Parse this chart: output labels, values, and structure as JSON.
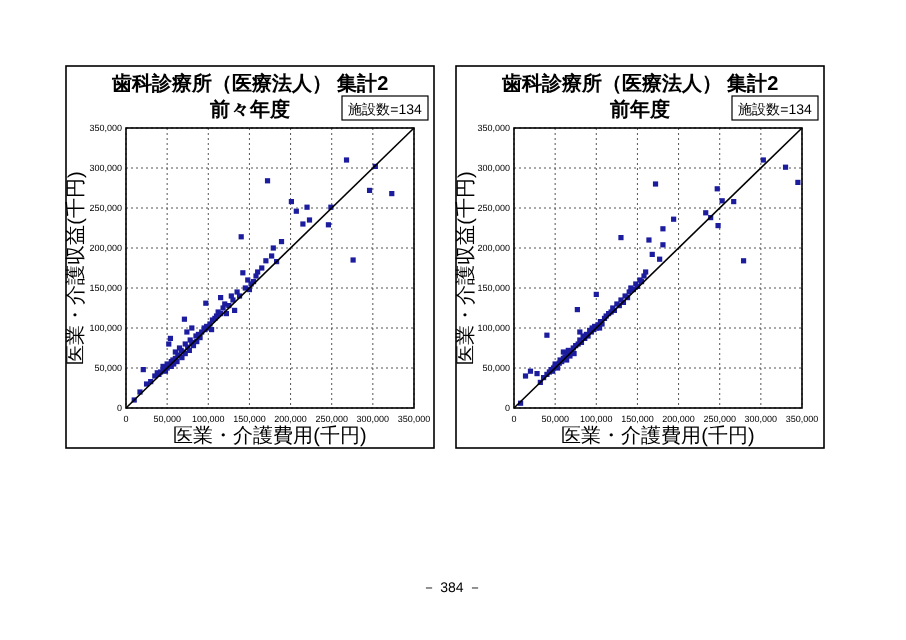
{
  "chart_data": [
    {
      "type": "scatter",
      "title": "歯科診療所（医療法人） 集計2",
      "subtitle": "前々年度",
      "xlabel": "医業・介護費用(千円)",
      "ylabel": "医業・介護収益(千円)",
      "annotations": [
        "施設数=134"
      ],
      "xlim": [
        0,
        350000
      ],
      "ylim": [
        0,
        350000
      ],
      "xticks": [
        0,
        {
          "value": 50000,
          "label": "50,000"
        },
        {
          "value": 100000,
          "label": "100,000"
        },
        {
          "value": 150000,
          "label": "150,000"
        },
        {
          "value": 200000,
          "label": "200,000"
        },
        {
          "value": 250000,
          "label": "250,000"
        },
        {
          "value": 300000,
          "label": "300,000"
        },
        {
          "value": 350000,
          "label": "350,000"
        }
      ],
      "yticks": [
        0,
        {
          "value": 50000,
          "label": "50,000"
        },
        {
          "value": 100000,
          "label": "100,000"
        },
        {
          "value": 150000,
          "label": "150,000"
        },
        {
          "value": 200000,
          "label": "200,000"
        },
        {
          "value": 250000,
          "label": "250,000"
        },
        {
          "value": 300000,
          "label": "300,000"
        },
        {
          "value": 350000,
          "label": "350,000"
        }
      ],
      "grid": true,
      "marker": "square",
      "series": [
        {
          "type": "scatter",
          "color": "#1c1c9e",
          "x": [
            10000,
            17000,
            21000,
            25000,
            30000,
            35000,
            38000,
            40000,
            42000,
            45000,
            45000,
            48000,
            50000,
            50000,
            52000,
            54000,
            55000,
            55000,
            57000,
            58000,
            60000,
            60000,
            62000,
            63000,
            65000,
            65000,
            67000,
            68000,
            70000,
            71000,
            72000,
            72000,
            74000,
            75000,
            77000,
            78000,
            80000,
            80000,
            82000,
            85000,
            86000,
            88000,
            90000,
            92000,
            95000,
            96000,
            97000,
            98000,
            100000,
            102000,
            104000,
            105000,
            108000,
            110000,
            112000,
            115000,
            115000,
            118000,
            120000,
            122000,
            125000,
            128000,
            130000,
            132000,
            135000,
            138000,
            140000,
            142000,
            145000,
            148000,
            150000,
            152000,
            155000,
            158000,
            160000,
            165000,
            170000,
            172000,
            177000,
            179000,
            183000,
            189000,
            201000,
            207000,
            215000,
            220000,
            223000,
            246000,
            249000,
            268000,
            276000,
            296000,
            303000,
            323000
          ],
          "values": [
            10000,
            20000,
            48000,
            30000,
            33000,
            40000,
            44000,
            42000,
            45000,
            48000,
            52000,
            46000,
            50000,
            55000,
            80000,
            87000,
            58000,
            52000,
            60000,
            55000,
            62000,
            70000,
            58000,
            66000,
            65000,
            75000,
            72000,
            63000,
            70000,
            111000,
            68000,
            80000,
            95000,
            76000,
            72000,
            85000,
            82000,
            100000,
            78000,
            90000,
            83000,
            92000,
            88000,
            95000,
            100000,
            98000,
            131000,
            102000,
            100000,
            105000,
            98000,
            110000,
            112000,
            115000,
            120000,
            118000,
            138000,
            125000,
            130000,
            118000,
            128000,
            140000,
            135000,
            122000,
            145000,
            140000,
            214000,
            169000,
            150000,
            160000,
            148000,
            155000,
            158000,
            165000,
            170000,
            175000,
            184000,
            284000,
            190000,
            200000,
            183000,
            208000,
            258000,
            246000,
            230000,
            251000,
            235000,
            229000,
            251000,
            310000,
            185000,
            272000,
            302000,
            268000
          ]
        },
        {
          "type": "line",
          "marker": "none",
          "color": "#000000",
          "x": [
            0,
            350000
          ],
          "values": [
            0,
            350000
          ]
        }
      ]
    },
    {
      "type": "scatter",
      "title": "歯科診療所（医療法人） 集計2",
      "subtitle": "前年度",
      "xlabel": "医業・介護費用(千円)",
      "ylabel": "医業・介護収益(千円)",
      "annotations": [
        "施設数=134",
        "－ 384 －"
      ],
      "xlim": [
        0,
        350000
      ],
      "ylim": [
        0,
        350000
      ],
      "xticks": [
        0,
        {
          "value": 50000,
          "label": "50,000"
        },
        {
          "value": 100000,
          "label": "100,000"
        },
        {
          "value": 150000,
          "label": "150,000"
        },
        {
          "value": 200000,
          "label": "200,000"
        },
        {
          "value": 250000,
          "label": "250,000"
        },
        {
          "value": 300000,
          "label": "300,000"
        },
        {
          "value": 350000,
          "label": "350,000"
        }
      ],
      "yticks": [
        0,
        {
          "value": 50000,
          "label": "50,000"
        },
        {
          "value": 100000,
          "label": "100,000"
        },
        {
          "value": 150000,
          "label": "150,000"
        },
        {
          "value": 200000,
          "label": "200,000"
        },
        {
          "value": 250000,
          "label": "250,000"
        },
        {
          "value": 300000,
          "label": "300,000"
        },
        {
          "value": 350000,
          "label": "350,000"
        }
      ],
      "grid": true,
      "marker": "square",
      "series": [
        {
          "type": "scatter",
          "color": "#1c1c9e",
          "x": [
            8000,
            14000,
            20000,
            28000,
            32000,
            36000,
            40000,
            40000,
            43000,
            45000,
            47000,
            48000,
            50000,
            50000,
            53000,
            55000,
            56000,
            58000,
            60000,
            60000,
            62000,
            64000,
            65000,
            66000,
            68000,
            70000,
            72000,
            73000,
            75000,
            77000,
            78000,
            80000,
            80000,
            82000,
            84000,
            86000,
            88000,
            90000,
            92000,
            94000,
            95000,
            97000,
            98000,
            100000,
            100000,
            102000,
            104000,
            105000,
            107000,
            110000,
            112000,
            115000,
            118000,
            120000,
            122000,
            125000,
            128000,
            130000,
            130000,
            133000,
            135000,
            138000,
            140000,
            142000,
            145000,
            148000,
            150000,
            153000,
            155000,
            158000,
            160000,
            164000,
            168000,
            172000,
            177000,
            181000,
            181000,
            194000,
            233000,
            239000,
            247000,
            248000,
            253000,
            267000,
            279000,
            303000,
            330000,
            345000
          ],
          "values": [
            6000,
            40000,
            46000,
            43000,
            32000,
            38000,
            91000,
            42000,
            45000,
            48000,
            46000,
            50000,
            52000,
            55000,
            50000,
            56000,
            60000,
            58000,
            62000,
            70000,
            64000,
            60000,
            67000,
            72000,
            65000,
            70000,
            75000,
            68000,
            78000,
            123000,
            80000,
            85000,
            95000,
            82000,
            90000,
            87000,
            92000,
            90000,
            97000,
            95000,
            100000,
            98000,
            102000,
            100000,
            142000,
            104000,
            100000,
            108000,
            105000,
            112000,
            115000,
            118000,
            120000,
            125000,
            122000,
            130000,
            128000,
            135000,
            213000,
            132000,
            140000,
            138000,
            145000,
            150000,
            148000,
            155000,
            152000,
            160000,
            158000,
            165000,
            170000,
            210000,
            192000,
            280000,
            186000,
            224000,
            204000,
            236000,
            244000,
            238000,
            274000,
            228000,
            259000,
            258000,
            184000,
            310000,
            301000,
            282000
          ]
        },
        {
          "type": "line",
          "marker": "none",
          "color": "#000000",
          "x": [
            0,
            350000
          ],
          "values": [
            0,
            350000
          ]
        }
      ]
    }
  ]
}
